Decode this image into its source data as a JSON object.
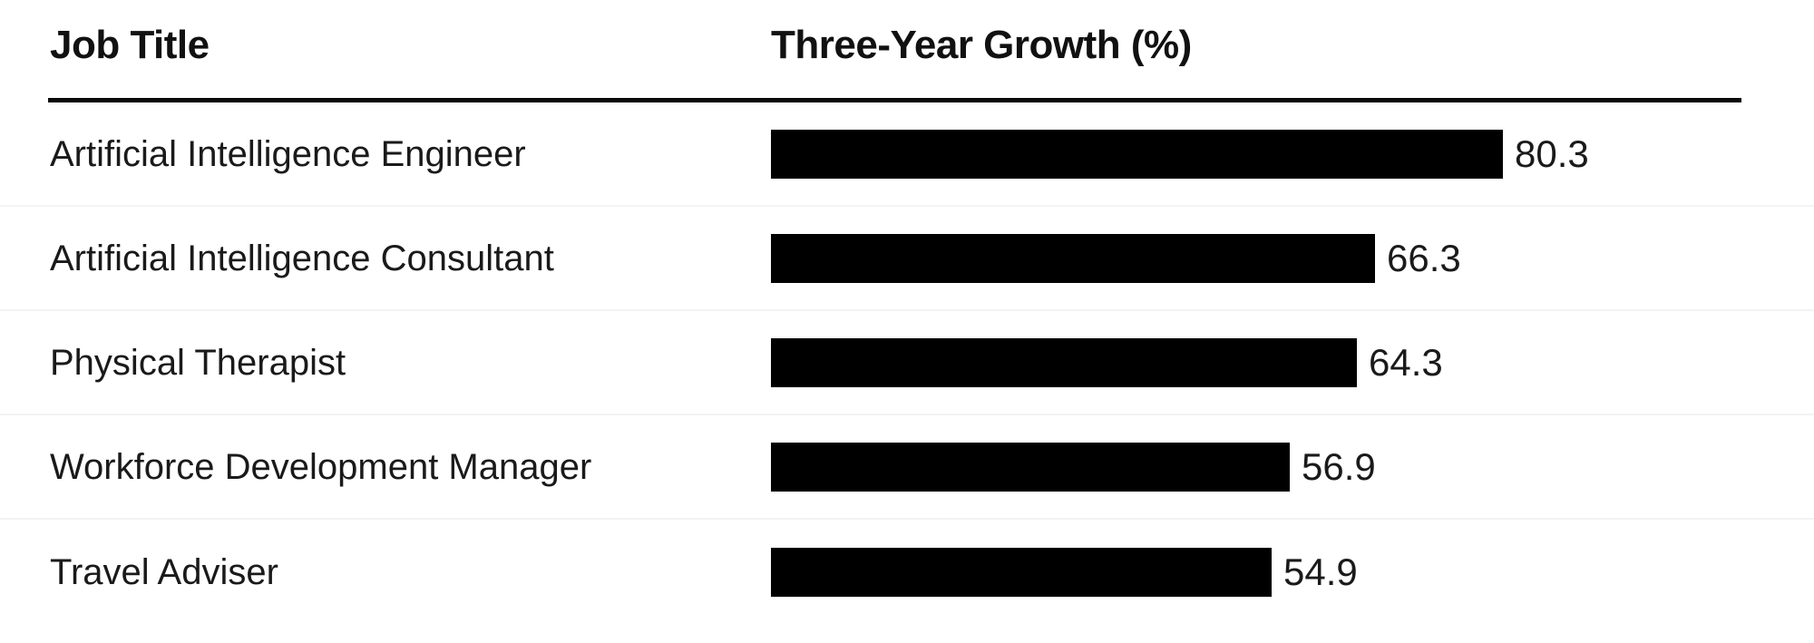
{
  "header": {
    "columns": [
      "Job Title",
      "Three-Year Growth (%)"
    ]
  },
  "chart_data": {
    "type": "bar",
    "orientation": "horizontal",
    "title": "",
    "categories": [
      "Artificial Intelligence Engineer",
      "Artificial Intelligence Consultant",
      "Physical Therapist",
      "Workforce Development Manager",
      "Travel Adviser"
    ],
    "values": [
      80.3,
      66.3,
      64.3,
      56.9,
      54.9
    ],
    "xlabel": "Three-Year Growth (%)",
    "ylabel": "Job Title",
    "xlim": [
      0,
      80.3
    ],
    "grid": false,
    "legend": "none",
    "bar_color": "#000000",
    "value_labels_shown": true
  },
  "colors": {
    "bar": "#000000",
    "text": "#1a1a1a",
    "header_divider": "#0a0a0a",
    "row_separator": "#f3f3f3",
    "background": "#ffffff"
  }
}
